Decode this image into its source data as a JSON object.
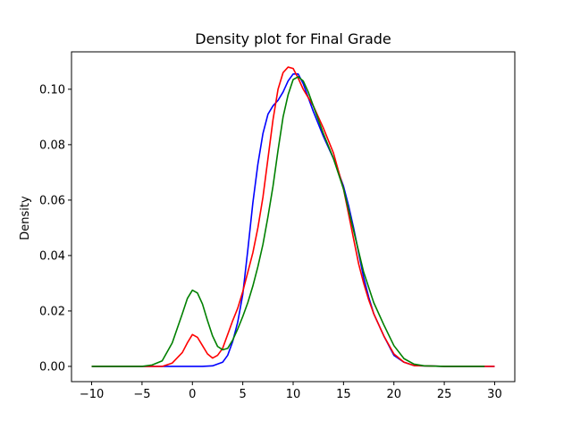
{
  "chart_data": {
    "type": "line",
    "title": "Density plot for Final Grade",
    "xlabel": "",
    "ylabel": "Density",
    "xlim": [
      -12,
      32
    ],
    "ylim": [
      -0.0055,
      0.1135
    ],
    "xticks": [
      -10,
      -5,
      0,
      5,
      10,
      15,
      20,
      25,
      30
    ],
    "xtick_labels": [
      "−10",
      "−5",
      "0",
      "5",
      "10",
      "15",
      "20",
      "25",
      "30"
    ],
    "yticks": [
      0.0,
      0.02,
      0.04,
      0.06,
      0.08,
      0.1
    ],
    "ytick_labels": [
      "0.00",
      "0.02",
      "0.04",
      "0.06",
      "0.08",
      "0.10"
    ],
    "grid": false,
    "legend": "none",
    "series": [
      {
        "color": "#0000ff",
        "x": [
          -10,
          -5,
          -2,
          0,
          1,
          2,
          3,
          3.5,
          4,
          4.5,
          5,
          5.5,
          6,
          6.5,
          7,
          7.5,
          8,
          8.5,
          9,
          9.5,
          10,
          10.5,
          11,
          12,
          13,
          14,
          15,
          15.5,
          16,
          16.5,
          17,
          17.5,
          18,
          19,
          20,
          21,
          22,
          25,
          30
        ],
        "y": [
          0.0,
          0.0,
          0.0,
          0.0,
          0.0,
          0.0002,
          0.0015,
          0.004,
          0.009,
          0.016,
          0.026,
          0.042,
          0.059,
          0.073,
          0.084,
          0.091,
          0.094,
          0.096,
          0.099,
          0.103,
          0.1055,
          0.1055,
          0.102,
          0.092,
          0.083,
          0.075,
          0.065,
          0.058,
          0.05,
          0.041,
          0.032,
          0.025,
          0.019,
          0.011,
          0.004,
          0.0015,
          0.0003,
          0.0,
          0.0
        ]
      },
      {
        "color": "#ff0000",
        "x": [
          -10,
          -5,
          -3,
          -2,
          -1,
          -0.5,
          0,
          0.5,
          1,
          1.5,
          2,
          2.5,
          3,
          3.5,
          4,
          4.5,
          5,
          5.5,
          6,
          6.5,
          7,
          7.5,
          8,
          8.5,
          9,
          9.5,
          10,
          10.5,
          11,
          11.5,
          12,
          13,
          14,
          15,
          16,
          16.5,
          17,
          17.5,
          18,
          19,
          20,
          21,
          22,
          25,
          30
        ],
        "y": [
          0.0,
          0.0,
          0.0,
          0.0012,
          0.005,
          0.0085,
          0.0115,
          0.0105,
          0.0075,
          0.0045,
          0.003,
          0.004,
          0.0065,
          0.0115,
          0.0165,
          0.021,
          0.027,
          0.034,
          0.041,
          0.05,
          0.061,
          0.075,
          0.089,
          0.1,
          0.106,
          0.108,
          0.1075,
          0.104,
          0.1,
          0.097,
          0.094,
          0.086,
          0.077,
          0.064,
          0.046,
          0.037,
          0.03,
          0.024,
          0.019,
          0.011,
          0.0045,
          0.0015,
          0.0003,
          0.0,
          0.0
        ]
      },
      {
        "color": "#008000",
        "x": [
          -10,
          -5,
          -4,
          -3,
          -2,
          -1,
          -0.5,
          0,
          0.5,
          1,
          1.5,
          2,
          2.5,
          3,
          3.5,
          4,
          4.5,
          5,
          5.5,
          6,
          6.5,
          7,
          7.5,
          8,
          8.5,
          9,
          9.5,
          10,
          10.5,
          11,
          11.5,
          12,
          13,
          14,
          15,
          16,
          17,
          18,
          19,
          20,
          21,
          22,
          23,
          25,
          29
        ],
        "y": [
          0.0,
          0.0,
          0.0005,
          0.002,
          0.0085,
          0.019,
          0.0245,
          0.0275,
          0.0265,
          0.0225,
          0.0165,
          0.011,
          0.0072,
          0.006,
          0.0065,
          0.0095,
          0.0135,
          0.018,
          0.023,
          0.029,
          0.036,
          0.044,
          0.054,
          0.065,
          0.078,
          0.09,
          0.098,
          0.1035,
          0.1045,
          0.103,
          0.099,
          0.094,
          0.084,
          0.075,
          0.064,
          0.049,
          0.034,
          0.023,
          0.015,
          0.0075,
          0.0028,
          0.0008,
          0.0002,
          0.0,
          0.0
        ]
      }
    ]
  }
}
